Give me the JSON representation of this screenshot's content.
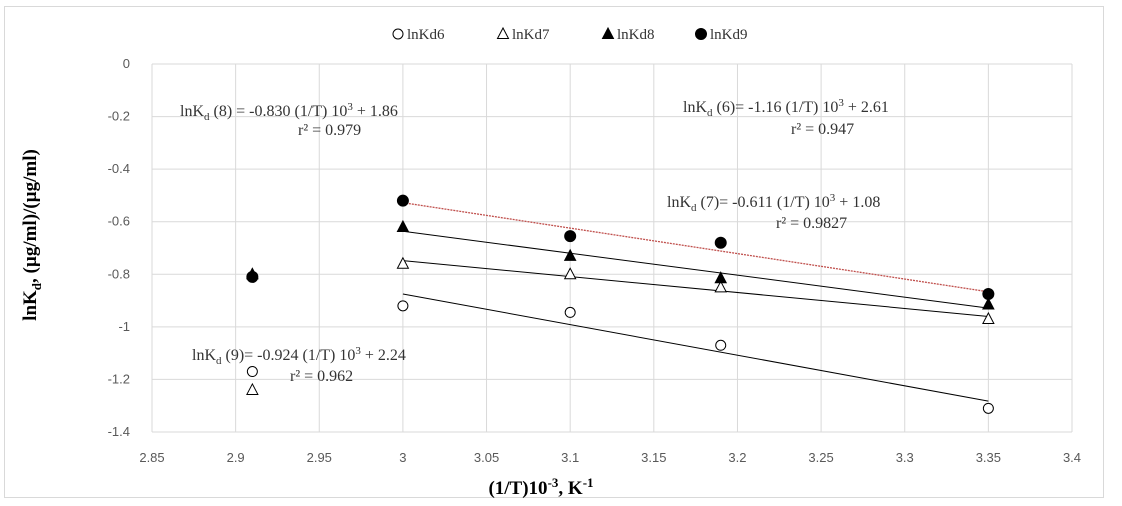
{
  "chart_data": {
    "type": "scatter",
    "xlabel": "(1/T)10-3, K-1",
    "xlabel_parts": {
      "main": "(1/T)10",
      "sup1": "-3",
      "mid": ", K",
      "sup2": "-1"
    },
    "ylabel": "lnKd, (µg/ml)/(µg/ml)",
    "ylabel_parts": {
      "main": "lnK",
      "sub": "d",
      "rest": ", (µg/ml)/(µg/ml)"
    },
    "xlim": [
      2.85,
      3.4
    ],
    "ylim": [
      -1.4,
      0
    ],
    "xticks": [
      2.85,
      2.9,
      2.95,
      3,
      3.05,
      3.1,
      3.15,
      3.2,
      3.25,
      3.3,
      3.35,
      3.4
    ],
    "xtick_labels": [
      "2.85",
      "2.9",
      "2.95",
      "3",
      "3.05",
      "3.1",
      "3.15",
      "3.2",
      "3.25",
      "3.3",
      "3.35",
      "3.4"
    ],
    "yticks": [
      0,
      -0.2,
      -0.4,
      -0.6,
      -0.8,
      -1,
      -1.2,
      -1.4
    ],
    "ytick_labels": [
      "0",
      "-0.2",
      "-0.4",
      "-0.6",
      "-0.8",
      "-1",
      "-1.2",
      "-1.4"
    ],
    "grid": true,
    "legend_position": "top",
    "series": [
      {
        "name": "lnKd6",
        "marker": "circle-open",
        "x": [
          2.91,
          3.0,
          3.1,
          3.19,
          3.35
        ],
        "y": [
          -1.17,
          -0.92,
          -0.945,
          -1.07,
          -1.31
        ],
        "fit": {
          "slope": -1.16,
          "intercept": 2.61
        }
      },
      {
        "name": "lnKd7",
        "marker": "triangle-open",
        "x": [
          2.91,
          3.0,
          3.1,
          3.19,
          3.35
        ],
        "y": [
          -1.24,
          -0.76,
          -0.8,
          -0.85,
          -0.97
        ],
        "fit": {
          "slope": -0.611,
          "intercept": 1.08
        }
      },
      {
        "name": "lnKd8",
        "marker": "triangle-filled",
        "x": [
          2.91,
          3.0,
          3.1,
          3.19,
          3.35
        ],
        "y": [
          -0.8,
          -0.62,
          -0.73,
          -0.815,
          -0.915
        ],
        "fit": {
          "slope": -0.83,
          "intercept": 1.86
        }
      },
      {
        "name": "lnKd9",
        "marker": "circle-filled",
        "x": [
          2.91,
          3.0,
          3.1,
          3.19,
          3.35
        ],
        "y": [
          -0.81,
          -0.52,
          -0.655,
          -0.68,
          -0.875
        ],
        "fit": {
          "slope": -0.924,
          "intercept": 2.24
        }
      }
    ],
    "annotations": [
      {
        "id": "eq8",
        "main": "lnK",
        "sub": "d",
        "body": " (8) = -0.830 (1/T) 10",
        "sup": "3",
        "tail": " + 1.86",
        "r2": "r² = 0.979"
      },
      {
        "id": "eq6",
        "main": "lnK",
        "sub": "d",
        "body": " (6)= -1.16 (1/T) 10",
        "sup": "3",
        "tail": " + 2.61",
        "r2": "r² = 0.947"
      },
      {
        "id": "eq7",
        "main": "lnK",
        "sub": "d",
        "body": " (7)= -0.611 (1/T) 10",
        "sup": "3",
        "tail": " + 1.08",
        "r2": "r² = 0.9827"
      },
      {
        "id": "eq9",
        "main": "lnK",
        "sub": "d",
        "body": " (9)= -0.924 (1/T) 10",
        "sup": "3",
        "tail": " + 2.24",
        "r2": "r² = 0.962"
      }
    ],
    "colors": {
      "gridline": "#d9d9d9",
      "marker": "#000000",
      "fitline": "#000000",
      "fitline9": "#c0504d",
      "text": "#595959"
    }
  }
}
